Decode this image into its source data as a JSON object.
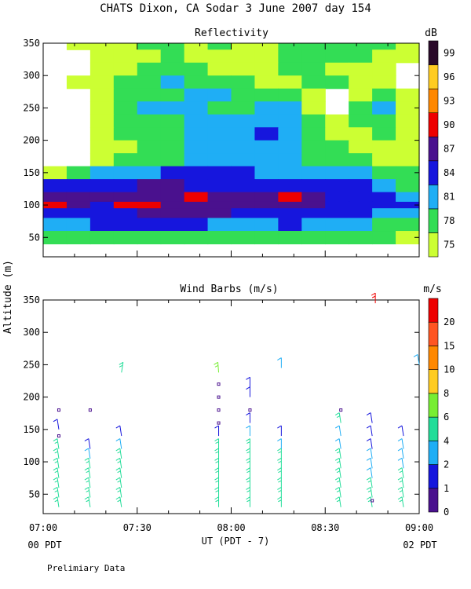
{
  "header": {
    "title": "CHATS Dixon, CA  Sodar    3 June 2007  day 154",
    "preliminary": "Prelimiary Data"
  },
  "chart_data": [
    {
      "type": "heatmap",
      "title": "Reflectivity",
      "ylabel": "Altitude (m)",
      "xlim": [
        "07:00",
        "09:00"
      ],
      "ylim": [
        20,
        350
      ],
      "yticks": [
        "50",
        "100",
        "150",
        "200",
        "250",
        "300",
        "350"
      ],
      "colorbar": {
        "unit": "dB",
        "levels": [
          "75",
          "78",
          "81",
          "84",
          "87",
          "90",
          "93",
          "96",
          "99"
        ],
        "colors": [
          "#ccff33",
          "#33dd55",
          "#1faef5",
          "#1616dd",
          "#4a118e",
          "#ee0000",
          "#ff8800",
          "#ffcc22",
          "#2a0a2a"
        ]
      },
      "rows_altitude_m": [
        350,
        330,
        310,
        290,
        270,
        250,
        230,
        210,
        190,
        170,
        150,
        130,
        110,
        100,
        90,
        70,
        50,
        30
      ],
      "row_levels": [
        [
          -1,
          0,
          0,
          0,
          1,
          1,
          0,
          1,
          0,
          0,
          1,
          1,
          1,
          1,
          1,
          0
        ],
        [
          -1,
          -1,
          0,
          0,
          0,
          1,
          0,
          0,
          0,
          0,
          1,
          1,
          1,
          1,
          0,
          0
        ],
        [
          -1,
          -1,
          0,
          0,
          1,
          1,
          1,
          0,
          0,
          0,
          1,
          1,
          0,
          0,
          0,
          -1
        ],
        [
          -1,
          0,
          0,
          1,
          1,
          2,
          1,
          1,
          1,
          0,
          0,
          1,
          1,
          0,
          0,
          -1
        ],
        [
          -1,
          -1,
          0,
          1,
          1,
          1,
          2,
          2,
          1,
          1,
          1,
          0,
          -1,
          0,
          1,
          0
        ],
        [
          -1,
          -1,
          0,
          1,
          2,
          2,
          2,
          1,
          1,
          2,
          2,
          0,
          -1,
          1,
          2,
          0
        ],
        [
          -1,
          -1,
          0,
          1,
          1,
          1,
          2,
          2,
          2,
          2,
          2,
          1,
          0,
          1,
          1,
          0
        ],
        [
          -1,
          -1,
          0,
          1,
          1,
          1,
          2,
          2,
          2,
          3,
          2,
          1,
          0,
          0,
          1,
          0
        ],
        [
          -1,
          -1,
          0,
          0,
          1,
          1,
          2,
          2,
          2,
          2,
          2,
          1,
          1,
          0,
          0,
          0
        ],
        [
          -1,
          -1,
          0,
          1,
          1,
          1,
          2,
          2,
          2,
          2,
          2,
          1,
          1,
          1,
          0,
          0
        ],
        [
          0,
          1,
          2,
          2,
          2,
          3,
          3,
          3,
          3,
          2,
          2,
          2,
          2,
          2,
          1,
          1
        ],
        [
          3,
          3,
          3,
          3,
          4,
          4,
          3,
          3,
          3,
          3,
          3,
          3,
          3,
          3,
          2,
          1
        ],
        [
          4,
          4,
          4,
          4,
          4,
          4,
          5,
          4,
          4,
          4,
          5,
          4,
          3,
          3,
          3,
          2
        ],
        [
          5,
          4,
          3,
          5,
          5,
          4,
          4,
          4,
          4,
          4,
          4,
          4,
          3,
          3,
          3,
          3
        ],
        [
          3,
          3,
          3,
          3,
          4,
          4,
          4,
          4,
          3,
          3,
          3,
          3,
          3,
          3,
          2,
          2
        ],
        [
          2,
          2,
          3,
          3,
          3,
          3,
          3,
          2,
          2,
          2,
          3,
          2,
          2,
          2,
          1,
          1
        ],
        [
          1,
          1,
          1,
          1,
          1,
          1,
          1,
          1,
          1,
          1,
          1,
          1,
          1,
          1,
          1,
          0
        ],
        [
          -1,
          -1,
          -1,
          -1,
          -1,
          -1,
          -1,
          -1,
          -1,
          -1,
          -1,
          -1,
          -1,
          -1,
          -1,
          -1
        ]
      ]
    },
    {
      "type": "scatter",
      "title": "Wind Barbs (m/s)",
      "xlabel": "UT  (PDT - 7)",
      "ylabel": "Altitude (m)",
      "xlim": [
        "07:00",
        "09:00"
      ],
      "ylim": [
        20,
        350
      ],
      "xticks": [
        "07:00",
        "07:30",
        "08:00",
        "08:30",
        "09:00"
      ],
      "xticks_local": {
        "left": "00 PDT",
        "right": "02 PDT"
      },
      "yticks": [
        "50",
        "100",
        "150",
        "200",
        "250",
        "300",
        "350"
      ],
      "colorbar": {
        "unit": "m/s",
        "labels": [
          "0",
          "1",
          "2",
          "4",
          "6",
          "8",
          "10",
          "15",
          "20"
        ],
        "colors": [
          "#4a118e",
          "#1616dd",
          "#1faef5",
          "#22dd99",
          "#77ee33",
          "#ffcc22",
          "#ff8800",
          "#ff5522",
          "#ee0000"
        ]
      },
      "profile_times_min": [
        5,
        15,
        25,
        56,
        66,
        76,
        95,
        105,
        115
      ],
      "barb_altitudes_m": [
        30,
        45,
        60,
        75,
        90,
        105,
        120,
        140,
        160
      ],
      "barb_speed_class": [
        [
          3,
          3,
          3,
          3,
          3,
          3,
          3,
          -1,
          -1
        ],
        [
          3,
          3,
          3,
          3,
          3,
          2,
          1,
          -1,
          -1
        ],
        [
          3,
          3,
          3,
          3,
          3,
          3,
          2,
          1,
          -1
        ],
        [
          3,
          3,
          3,
          3,
          3,
          3,
          3,
          1,
          -1
        ],
        [
          3,
          3,
          3,
          3,
          3,
          3,
          3,
          2,
          1
        ],
        [
          3,
          3,
          3,
          3,
          3,
          3,
          2,
          1,
          -1
        ],
        [
          3,
          3,
          3,
          3,
          3,
          3,
          2,
          2,
          3
        ],
        [
          3,
          3,
          3,
          2,
          2,
          2,
          1,
          1,
          1
        ],
        [
          3,
          3,
          3,
          3,
          2,
          2,
          2,
          1,
          -1
        ]
      ],
      "extra_barbs": [
        {
          "t": 5,
          "alt": 150,
          "cls": 1
        },
        {
          "t": 25,
          "alt": 238,
          "cls": 3
        },
        {
          "t": 56,
          "alt": 238,
          "cls": 4
        },
        {
          "t": 66,
          "alt": 200,
          "cls": 1
        },
        {
          "t": 66,
          "alt": 215,
          "cls": 1
        },
        {
          "t": 76,
          "alt": 245,
          "cls": 2
        },
        {
          "t": 106,
          "alt": 345,
          "cls": 8
        },
        {
          "t": 120,
          "alt": 250,
          "cls": 2
        }
      ],
      "calm_markers": [
        {
          "t": 5,
          "alt": 180
        },
        {
          "t": 5,
          "alt": 140
        },
        {
          "t": 15,
          "alt": 180
        },
        {
          "t": 56,
          "alt": 220
        },
        {
          "t": 56,
          "alt": 200
        },
        {
          "t": 56,
          "alt": 180
        },
        {
          "t": 56,
          "alt": 160
        },
        {
          "t": 66,
          "alt": 180
        },
        {
          "t": 95,
          "alt": 180
        },
        {
          "t": 105,
          "alt": 40
        }
      ]
    }
  ]
}
